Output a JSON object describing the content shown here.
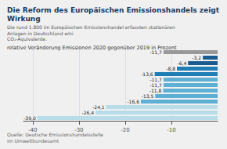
{
  "chart_data": {
    "type": "bar",
    "orientation": "horizontal",
    "title": "Die Reform des Europäischen Emissionshandels zeigt Wirkung",
    "subtitle": "Die rund 1.800 im Europäischen Emissionshandel erfassten stationären Anlagen in Deutschland emi\nCO₂-Äquivalente.",
    "xlabel": "relative Veränderung Emissionen 2020 gegenüber 2019 in Prozent",
    "annotations": [
      "Quelle: Deutsche Emissionshandelsstelle\nim Umweltbundesamt"
    ],
    "categories": [
      null,
      null,
      null,
      null,
      null,
      null,
      null,
      null,
      null,
      null,
      null,
      null,
      null
    ],
    "values": [
      -39.0,
      -26.4,
      -24.1,
      -16.6,
      -13.5,
      -11.8,
      -11.7,
      -11.7,
      -13.6,
      -8.8,
      -6.4,
      -3.2,
      -11.7
    ],
    "value_labels": [
      "-39,0",
      "-26,4",
      "-24,1",
      "-16,6",
      "-13,5",
      "-11,8",
      "-11,7",
      "-11,7",
      "-13,6",
      "-8,8",
      "-6,4",
      "-3,2",
      "-11,7"
    ],
    "colors": [
      "#b8dde8",
      "#b8dde8",
      "#b8dde8",
      "#5db0d3",
      "#5db0d3",
      "#5db0d3",
      "#5db0d3",
      "#5db0d3",
      "#1e7db5",
      "#1e7db5",
      "#1a5c90",
      "#1a5c90",
      "#999999"
    ],
    "xlim": [
      -42,
      0
    ],
    "xticks": [
      -40,
      -30,
      -20,
      -10
    ],
    "grid": true,
    "data_labels": true,
    "tick_labels": "x"
  }
}
